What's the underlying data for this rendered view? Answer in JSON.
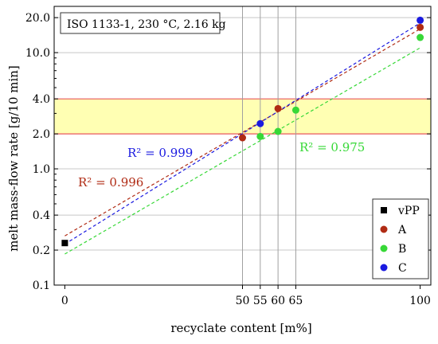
{
  "chart_data": {
    "type": "scatter",
    "y_scale": "log",
    "title": "ISO 1133-1, 230 °C, 2.16 kg",
    "xlabel": "recyclate content [m%]",
    "ylabel": "melt mass-flow rate [g/10 min]",
    "xlim": [
      -3,
      103
    ],
    "ylim": [
      0.1,
      25
    ],
    "x_ticks": [
      0,
      50,
      55,
      60,
      65,
      100
    ],
    "x_tick_labels": [
      "0",
      "50",
      "55",
      "60",
      "65",
      "100"
    ],
    "y_ticks": [
      0.1,
      0.2,
      0.4,
      1.0,
      2.0,
      4.0,
      10.0,
      20.0
    ],
    "y_tick_labels": [
      "0.1",
      "0.2",
      "0.4",
      "1.0",
      "2.0",
      "4.0",
      "10.0",
      "20.0"
    ],
    "grid": true,
    "vertical_reference_lines_x": [
      50,
      55,
      60,
      65
    ],
    "target_band": {
      "y_min": 2.0,
      "y_max": 4.0,
      "color": "#ffffb3",
      "edge_color": "#e8585c"
    },
    "legend_position": "bottom-right",
    "series": [
      {
        "name": "vPP",
        "color": "#000000",
        "marker": "square",
        "points": [
          {
            "x": 0,
            "y": 0.23
          }
        ]
      },
      {
        "name": "A",
        "color": "#b02b14",
        "marker": "circle",
        "points": [
          {
            "x": 50,
            "y": 1.85
          },
          {
            "x": 60,
            "y": 3.3
          },
          {
            "x": 100,
            "y": 16.5
          }
        ]
      },
      {
        "name": "B",
        "color": "#37d837",
        "marker": "circle",
        "points": [
          {
            "x": 55,
            "y": 1.9
          },
          {
            "x": 60,
            "y": 2.1
          },
          {
            "x": 65,
            "y": 3.2
          },
          {
            "x": 100,
            "y": 13.5
          }
        ]
      },
      {
        "name": "C",
        "color": "#1a1ae0",
        "marker": "circle",
        "points": [
          {
            "x": 55,
            "y": 2.45
          },
          {
            "x": 100,
            "y": 19.0
          }
        ]
      }
    ],
    "fits": [
      {
        "series": "A",
        "color": "#b02b14",
        "x": [
          0,
          100
        ],
        "y": [
          0.265,
          16.0
        ],
        "r2_label": "R² = 0.996"
      },
      {
        "series": "B",
        "color": "#37d837",
        "x": [
          0,
          100
        ],
        "y": [
          0.185,
          11.0
        ],
        "r2_label": "R² = 0.975"
      },
      {
        "series": "C",
        "color": "#1a1ae0",
        "x": [
          0,
          100
        ],
        "y": [
          0.225,
          18.0
        ],
        "r2_label": "R² = 0.999"
      }
    ]
  }
}
